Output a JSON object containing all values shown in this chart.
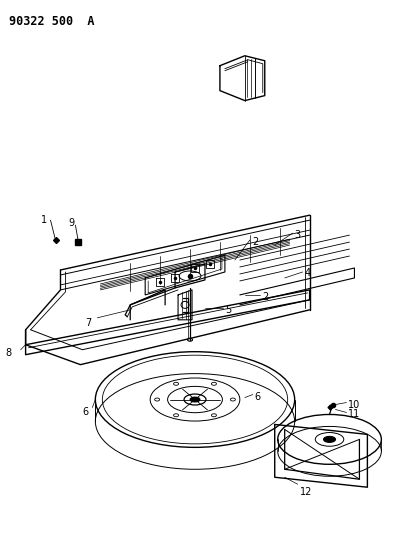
{
  "title": "90322 500  A",
  "bg": "#ffffff",
  "lc": "#000000",
  "figsize": [
    3.93,
    5.33
  ],
  "dpi": 100
}
